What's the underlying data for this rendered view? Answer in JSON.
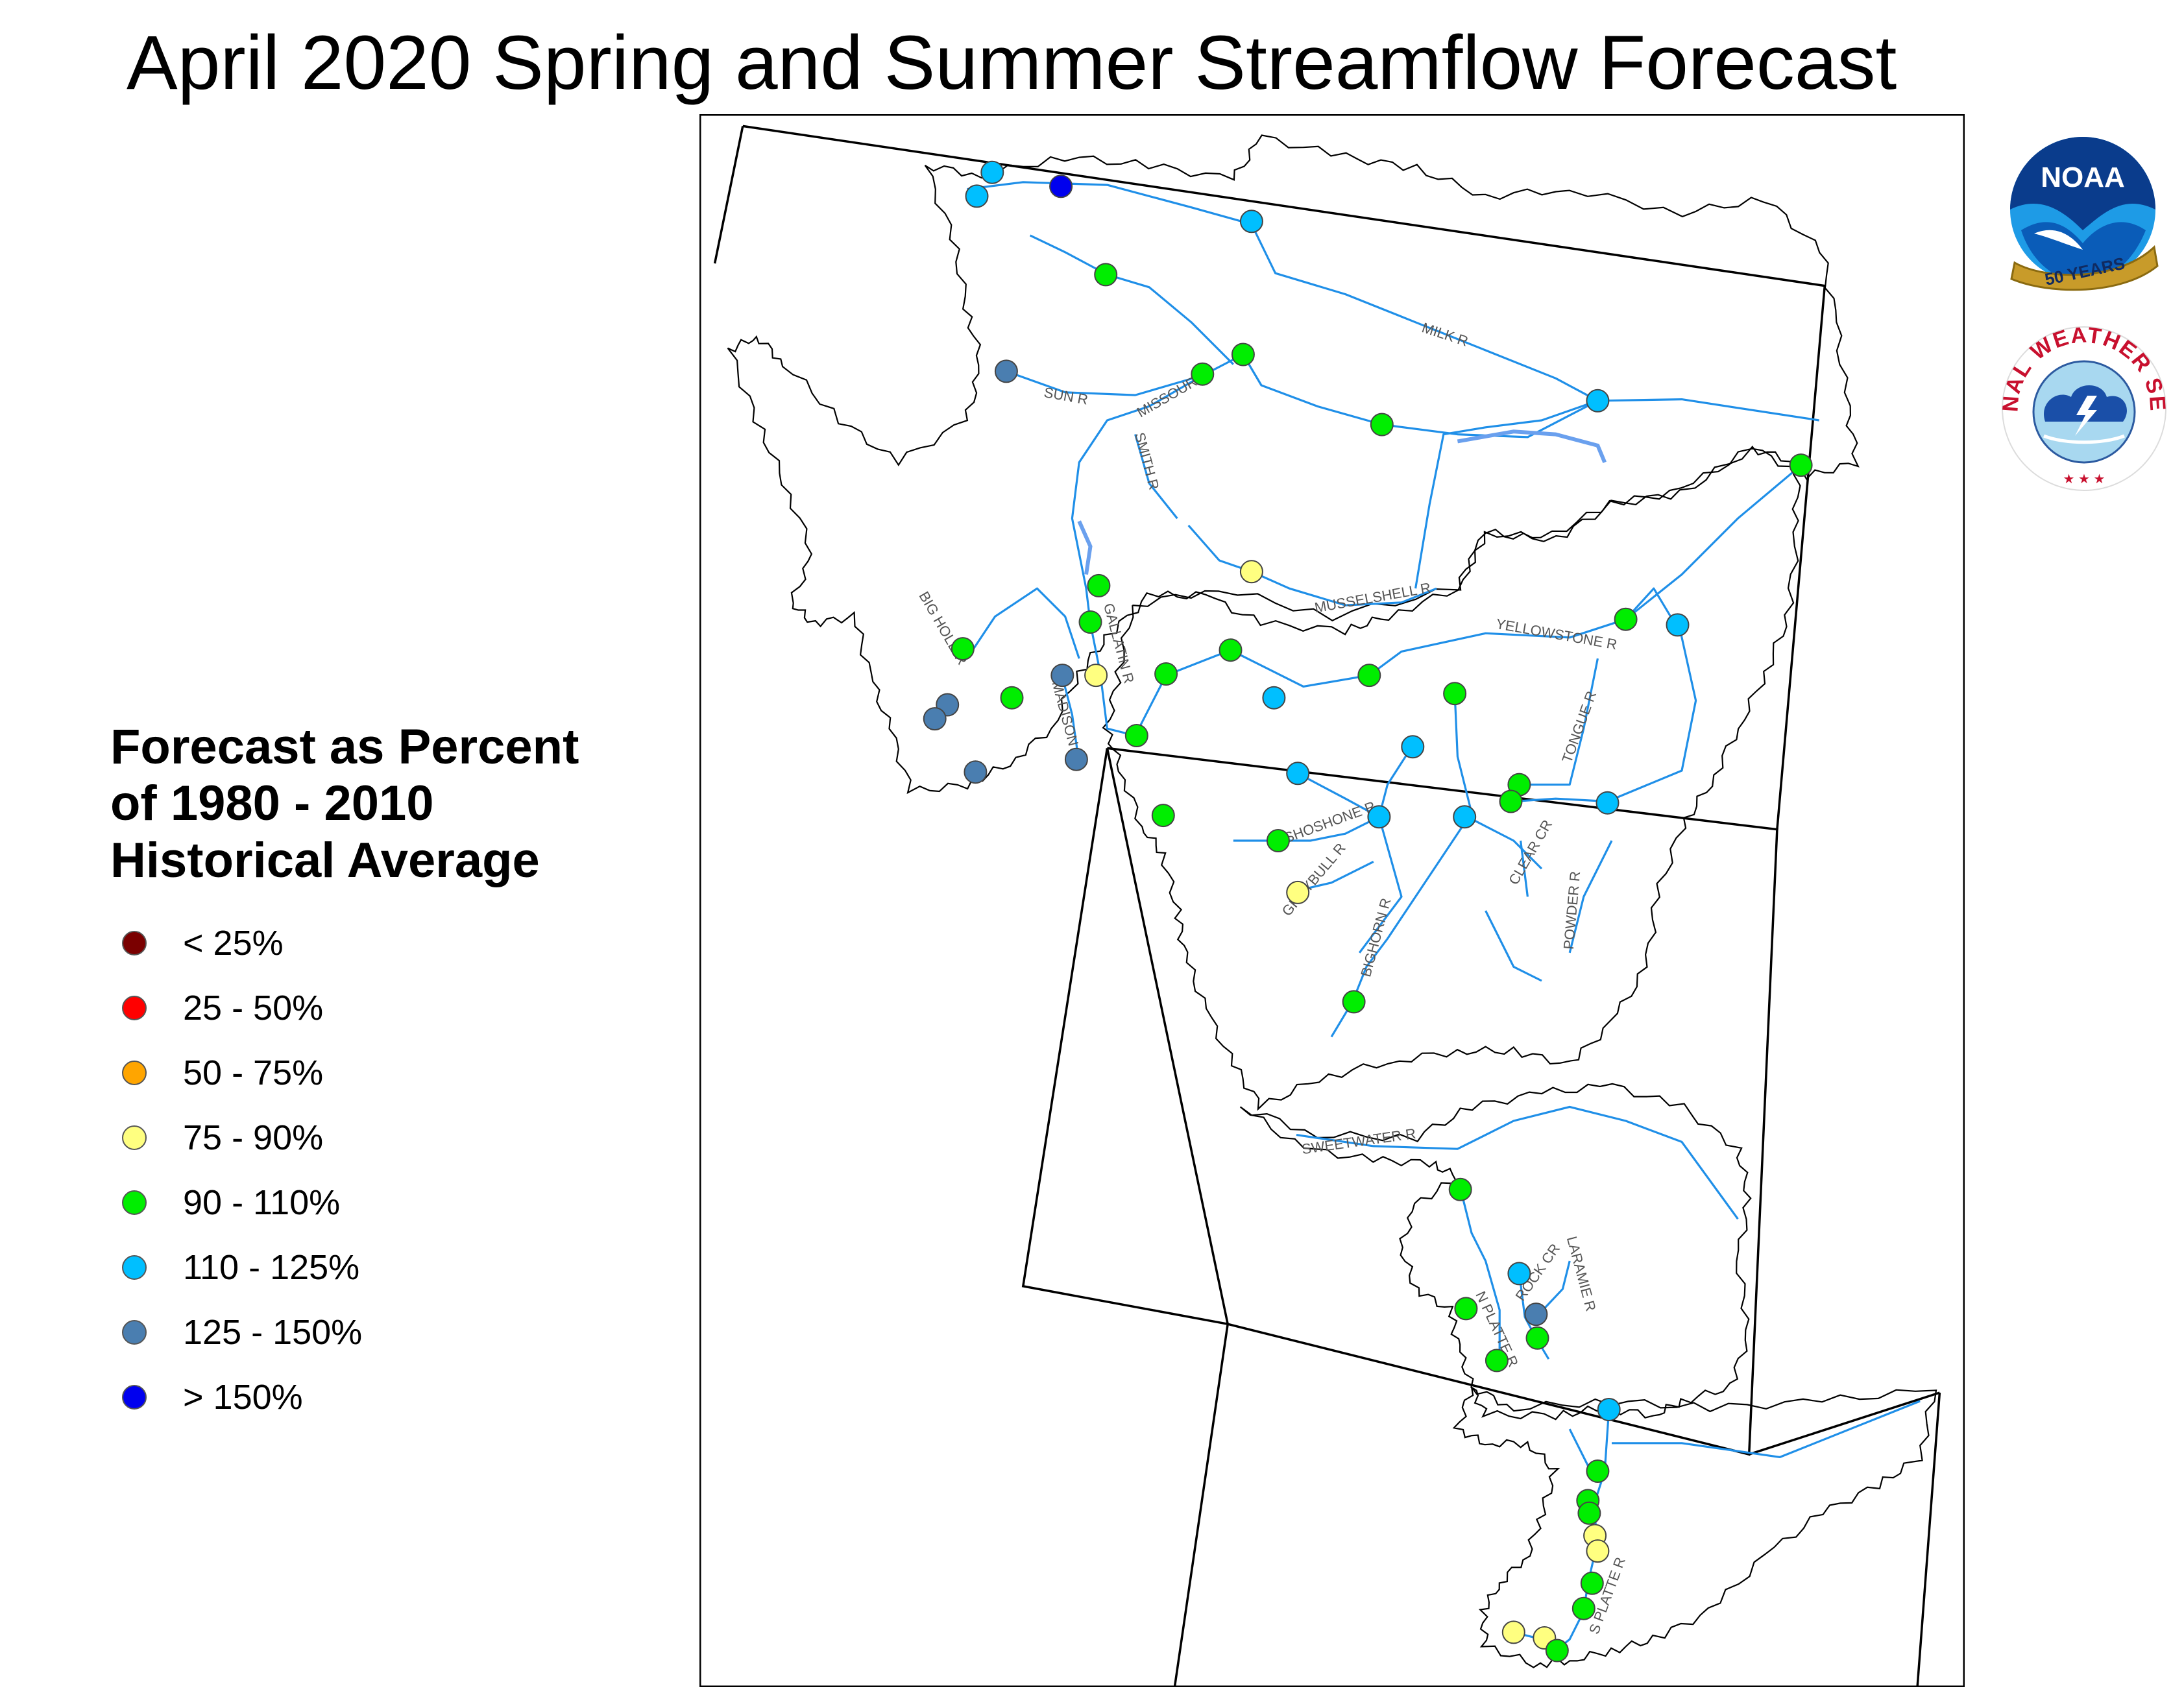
{
  "title": "April 2020 Spring and Summer Streamflow Forecast",
  "legend": {
    "title_lines": [
      "Forecast as Percent",
      "of 1980 - 2010",
      "Historical Average"
    ],
    "items": [
      {
        "label": "< 25%",
        "color": "#7a0000"
      },
      {
        "label": "25 - 50%",
        "color": "#ff0000"
      },
      {
        "label": "50 - 75%",
        "color": "#ffa500"
      },
      {
        "label": "75 - 90%",
        "color": "#ffff80"
      },
      {
        "label": "90 - 110%",
        "color": "#00ee00"
      },
      {
        "label": "110 - 125%",
        "color": "#00bfff"
      },
      {
        "label": "125 - 150%",
        "color": "#4a7eb0"
      },
      {
        "label": "> 150%",
        "color": "#0000ee"
      }
    ]
  },
  "river_labels": [
    "MILK R",
    "SUN R",
    "MISSOURI R",
    "SMITH R",
    "MUSSELSHELL R",
    "BIG HOLE R",
    "GALLATIN R",
    "MADISON R",
    "YELLOWSTONE R",
    "TONGUE R",
    "SHOSHONE R",
    "GREYBULL R",
    "BIGHORN R",
    "CLEAR CR",
    "POWDER R",
    "SWEETWATER R",
    "ROCK CR",
    "LARAMIE R",
    "N PLATTE R",
    "S PLATTE R"
  ],
  "logos": {
    "noaa": {
      "text": "NOAA",
      "anniversary": "50 YEARS",
      "icon": "noaa-logo-icon"
    },
    "nws": {
      "text": "NATIONAL WEATHER SERVICE",
      "icon": "nws-logo-icon"
    }
  }
}
